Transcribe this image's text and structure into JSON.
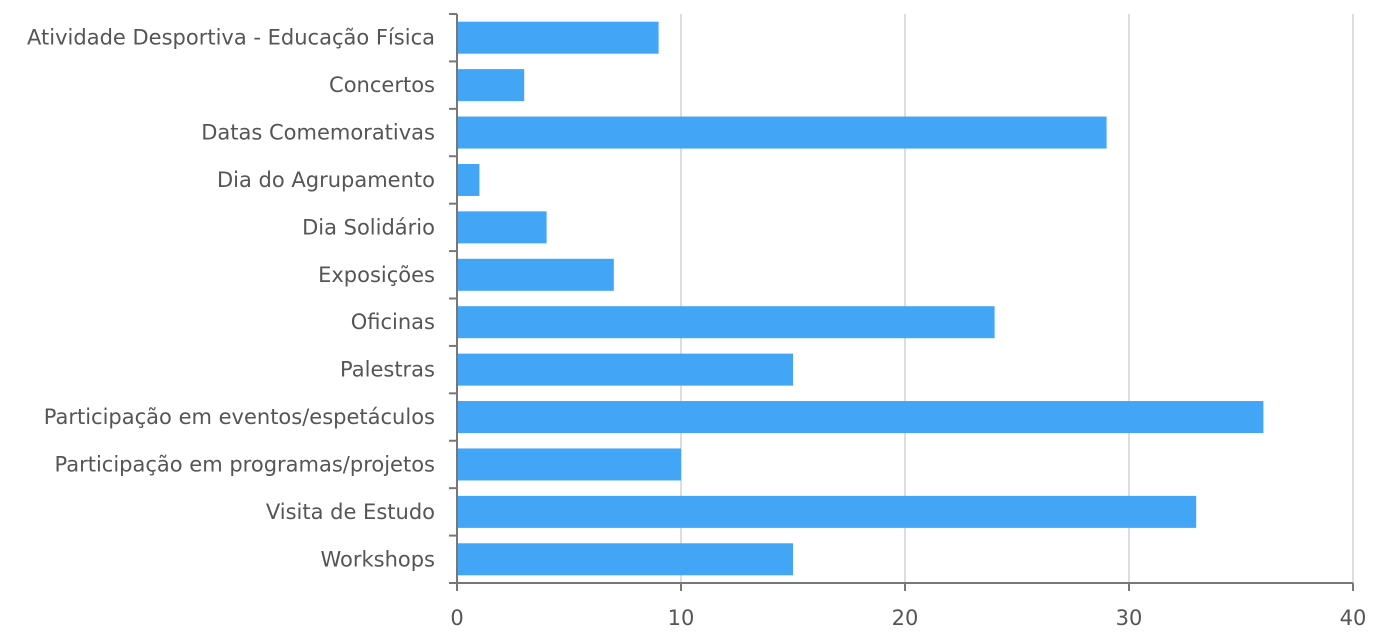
{
  "chart_data": {
    "type": "bar",
    "orientation": "horizontal",
    "title": "",
    "xlabel": "",
    "ylabel": "",
    "categories": [
      "Atividade Desportiva - Educação Física",
      "Concertos",
      "Datas Comemorativas",
      "Dia do Agrupamento",
      "Dia Solidário",
      "Exposições",
      "Oficinas",
      "Palestras",
      "Participação em eventos/espetáculos",
      "Participação em programas/projetos",
      "Visita de Estudo ",
      "Workshops"
    ],
    "values": [
      9,
      3,
      29,
      1,
      4,
      7,
      24,
      15,
      36,
      10,
      33,
      15
    ],
    "xlim": [
      0,
      40
    ],
    "xticks": [
      "0",
      "10",
      "20",
      "30",
      "40"
    ],
    "grid": "vertical",
    "legend": "none",
    "bar_color": "#42a5f5",
    "axis_color": "#777777",
    "grid_color": "#dddddd",
    "label_color": "#555555"
  }
}
